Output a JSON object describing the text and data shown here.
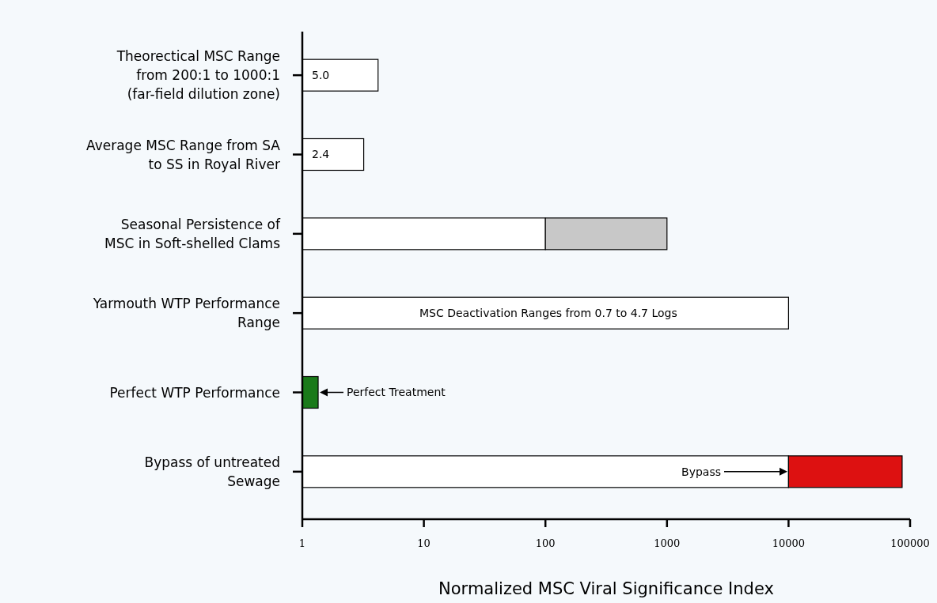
{
  "chart_data": {
    "type": "bar",
    "orientation": "horizontal",
    "log": "x",
    "xlabel": "Normalized MSC Viral Significance Index",
    "categories": [
      "Theorectical MSC Range from 200:1 to 1000:1 (far-field dilution zone)",
      "Average MSC Range from SA to SS in Royal River",
      "Seasonal Persistence of MSC in Soft-shelled Clams",
      "Yarmouth WTP Performance Range",
      "Perfect WTP Performance",
      "Bypass of untreated Sewage"
    ],
    "series": [
      {
        "color": "#ffffff",
        "base": [
          1,
          1,
          1,
          1,
          null,
          1
        ],
        "values": [
          3.2,
          2.2,
          99,
          9999,
          null,
          9999
        ]
      },
      {
        "color": "#c8c8c8",
        "base": [
          null,
          null,
          100,
          null,
          null,
          null
        ],
        "values": [
          null,
          null,
          900,
          null,
          null,
          null
        ]
      },
      {
        "color": "#1a7a1a",
        "base": [
          null,
          null,
          null,
          null,
          1,
          null
        ],
        "values": [
          null,
          null,
          null,
          null,
          0.35,
          null
        ]
      },
      {
        "color": "#dd1111",
        "base": [
          null,
          null,
          null,
          null,
          null,
          10000
        ],
        "values": [
          null,
          null,
          null,
          null,
          null,
          76000
        ]
      }
    ],
    "xlim": [
      1,
      100000
    ],
    "xticks": [
      1,
      10,
      100,
      1000,
      10000,
      100000
    ],
    "annotations": [
      "5.0",
      "2.4",
      "MSC Deactivation Ranges from 0.7 to 4.7 Logs",
      {
        "text": "Perfect Treatment",
        "x": 1.35,
        "y": "Perfect WTP Performance"
      },
      "Bypass"
    ]
  }
}
